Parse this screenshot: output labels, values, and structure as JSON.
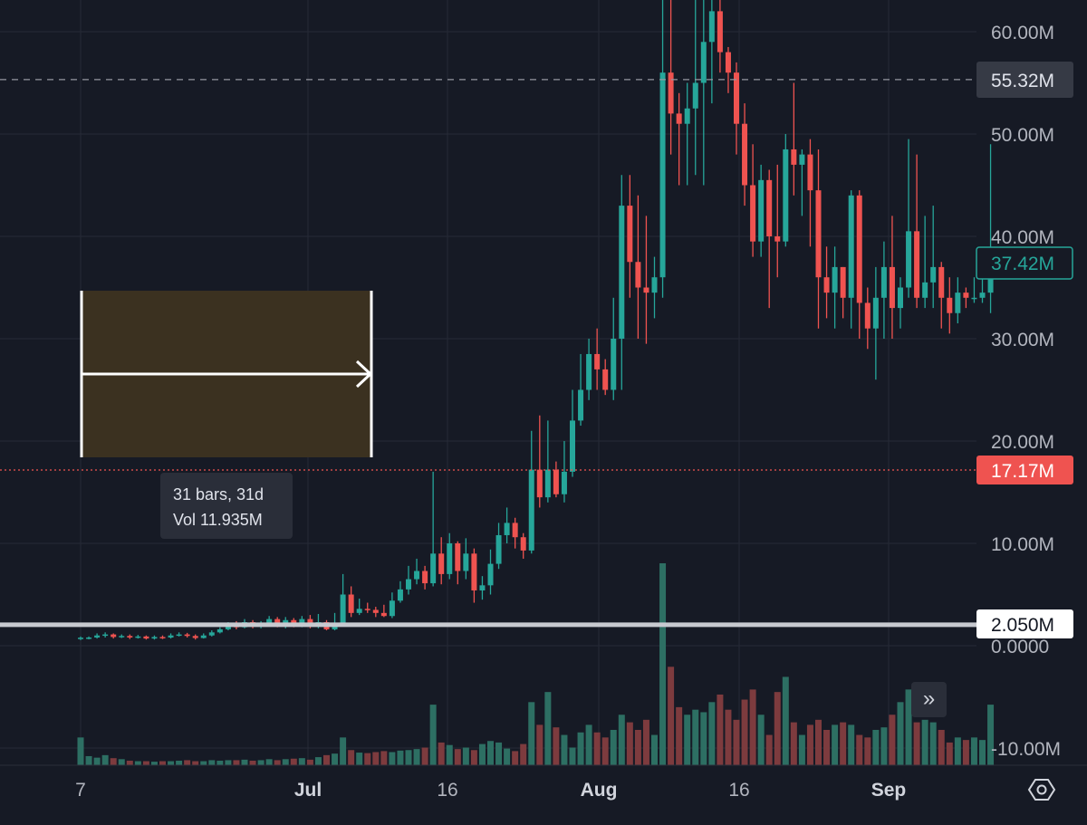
{
  "price_axis": {
    "ticks": [
      "60.00M",
      "50.00M",
      "40.00M",
      "30.00M",
      "20.00M",
      "10.00M",
      "0.0000",
      "-10.00M"
    ]
  },
  "time_axis": {
    "labels": [
      {
        "text": "7",
        "bold": false
      },
      {
        "text": "Jul",
        "bold": true
      },
      {
        "text": "16",
        "bold": false
      },
      {
        "text": "Aug",
        "bold": true
      },
      {
        "text": "16",
        "bold": false
      },
      {
        "text": "Sep",
        "bold": true
      }
    ]
  },
  "price_tags": {
    "high_line": "55.32M",
    "last_price": "37.42M",
    "low_line": "17.17M",
    "horizontal_level": "2.050M"
  },
  "measure": {
    "line1": "31 bars, 31d",
    "line2": "Vol 11.935M"
  },
  "buttons": {
    "scroll_to_realtime": "»"
  },
  "colors": {
    "background": "#161a25",
    "up": "#26a69a",
    "down": "#ef5350",
    "up_volume": "#2d6f63",
    "down_volume": "#7d3b3e",
    "grid": "#262a36",
    "measure_fill": "#3b3120"
  },
  "chart_data": {
    "type": "candlestick",
    "ylim": [
      -10000000,
      65000000
    ],
    "candles": [
      [
        0.65,
        0.78,
        0.55,
        0.9
      ],
      [
        0.78,
        0.8,
        0.62,
        0.9
      ],
      [
        0.8,
        1.0,
        0.7,
        1.2
      ],
      [
        1.0,
        1.1,
        0.8,
        1.3
      ],
      [
        1.1,
        0.85,
        0.7,
        1.2
      ],
      [
        0.85,
        0.95,
        0.75,
        1.1
      ],
      [
        0.95,
        0.8,
        0.65,
        1.1
      ],
      [
        0.8,
        0.9,
        0.7,
        1.05
      ],
      [
        0.9,
        0.7,
        0.6,
        1.0
      ],
      [
        0.7,
        0.85,
        0.6,
        1.0
      ],
      [
        0.85,
        0.8,
        0.65,
        1.0
      ],
      [
        0.8,
        1.0,
        0.7,
        1.2
      ],
      [
        1.0,
        1.1,
        0.9,
        1.3
      ],
      [
        1.1,
        0.95,
        0.8,
        1.25
      ],
      [
        0.95,
        0.75,
        0.6,
        1.1
      ],
      [
        0.75,
        1.0,
        0.7,
        1.2
      ],
      [
        1.0,
        1.3,
        0.9,
        1.5
      ],
      [
        1.3,
        1.6,
        1.2,
        1.8
      ],
      [
        1.6,
        2.1,
        1.5,
        2.3
      ],
      [
        2.1,
        1.8,
        1.6,
        2.4
      ],
      [
        1.8,
        2.3,
        1.7,
        2.6
      ],
      [
        2.3,
        1.9,
        1.7,
        2.5
      ],
      [
        1.9,
        2.2,
        1.7,
        2.4
      ],
      [
        2.2,
        2.6,
        2.0,
        2.9
      ],
      [
        2.6,
        1.9,
        1.8,
        2.8
      ],
      [
        1.9,
        2.5,
        1.7,
        2.8
      ],
      [
        2.5,
        2.0,
        1.8,
        2.7
      ],
      [
        2.0,
        2.6,
        1.8,
        2.9
      ],
      [
        2.6,
        1.9,
        1.7,
        3.0
      ],
      [
        1.9,
        2.3,
        1.7,
        3.1
      ],
      [
        2.3,
        1.6,
        1.5,
        2.5
      ],
      [
        1.6,
        2.2,
        1.5,
        3.2
      ],
      [
        2.2,
        5.0,
        2.1,
        7.0
      ],
      [
        5.0,
        3.2,
        2.8,
        5.8
      ],
      [
        3.2,
        3.6,
        3.0,
        4.6
      ],
      [
        3.6,
        3.5,
        3.2,
        4.2
      ],
      [
        3.5,
        3.2,
        2.8,
        3.8
      ],
      [
        3.2,
        2.9,
        2.8,
        4.0
      ],
      [
        2.9,
        4.4,
        2.7,
        5.2
      ],
      [
        4.4,
        5.5,
        4.2,
        6.3
      ],
      [
        5.5,
        6.5,
        5.0,
        7.8
      ],
      [
        6.5,
        7.3,
        6.0,
        8.5
      ],
      [
        7.3,
        6.1,
        5.5,
        7.8
      ],
      [
        6.1,
        9.0,
        5.8,
        17.0
      ],
      [
        9.0,
        7.0,
        6.0,
        10.6
      ],
      [
        7.0,
        10.0,
        6.5,
        11.0
      ],
      [
        10.0,
        7.3,
        6.0,
        10.2
      ],
      [
        7.3,
        9.0,
        6.5,
        10.5
      ],
      [
        9.0,
        5.4,
        4.2,
        9.5
      ],
      [
        5.4,
        5.9,
        4.5,
        6.8
      ],
      [
        5.9,
        8.0,
        5.0,
        9.4
      ],
      [
        8.0,
        10.8,
        7.5,
        12.0
      ],
      [
        10.8,
        12.0,
        10.0,
        13.5
      ],
      [
        12.0,
        10.6,
        9.5,
        12.5
      ],
      [
        10.6,
        9.3,
        8.5,
        11.0
      ],
      [
        9.3,
        17.2,
        9.0,
        21.0
      ],
      [
        17.2,
        14.5,
        13.5,
        22.5
      ],
      [
        14.5,
        17.2,
        14.0,
        22.0
      ],
      [
        17.2,
        14.8,
        14.5,
        18.0
      ],
      [
        14.8,
        17.0,
        14.0,
        20.0
      ],
      [
        17.0,
        22.0,
        16.5,
        25.0
      ],
      [
        22.0,
        25.0,
        21.5,
        28.5
      ],
      [
        25.0,
        28.5,
        24.0,
        30.0
      ],
      [
        28.5,
        27.0,
        25.0,
        31.0
      ],
      [
        27.0,
        25.0,
        24.5,
        28.0
      ],
      [
        25.0,
        30.0,
        24.0,
        34.0
      ],
      [
        30.0,
        43.0,
        25.0,
        46.0
      ],
      [
        43.0,
        37.5,
        34.0,
        46.0
      ],
      [
        37.5,
        35.0,
        30.0,
        44.0
      ],
      [
        35.0,
        34.5,
        29.5,
        42.0
      ],
      [
        34.5,
        36.0,
        32.0,
        38.0
      ],
      [
        36.0,
        56.0,
        34.0,
        65.0
      ],
      [
        56.0,
        52.0,
        48.0,
        64.0
      ],
      [
        52.0,
        51.0,
        45.0,
        54.0
      ],
      [
        51.0,
        52.5,
        45.0,
        55.0
      ],
      [
        52.5,
        55.0,
        46.0,
        65.0
      ],
      [
        55.0,
        59.0,
        45.0,
        65.0
      ],
      [
        59.0,
        62.0,
        53.0,
        65.0
      ],
      [
        62.0,
        58.0,
        56.0,
        65.0
      ],
      [
        58.0,
        56.0,
        54.0,
        58.5
      ],
      [
        56.0,
        51.0,
        48.0,
        57.0
      ],
      [
        51.0,
        45.0,
        43.0,
        53.0
      ],
      [
        45.0,
        39.5,
        38.0,
        49.0
      ],
      [
        39.5,
        45.5,
        38.0,
        47.0
      ],
      [
        45.5,
        40.0,
        33.0,
        46.5
      ],
      [
        40.0,
        39.5,
        36.0,
        47.0
      ],
      [
        39.5,
        48.5,
        39.0,
        50.0
      ],
      [
        48.5,
        47.0,
        44.0,
        55.0
      ],
      [
        47.0,
        48.0,
        42.0,
        48.5
      ],
      [
        48.0,
        44.5,
        39.0,
        49.5
      ],
      [
        44.5,
        36.0,
        31.0,
        48.5
      ],
      [
        36.0,
        34.5,
        32.0,
        39.0
      ],
      [
        34.5,
        37.0,
        31.0,
        39.0
      ],
      [
        37.0,
        34.0,
        32.0,
        37.0
      ],
      [
        34.0,
        44.0,
        31.0,
        44.5
      ],
      [
        44.0,
        33.5,
        30.0,
        44.5
      ],
      [
        33.5,
        31.0,
        29.0,
        35.0
      ],
      [
        31.0,
        34.0,
        26.0,
        37.0
      ],
      [
        34.0,
        37.0,
        30.0,
        39.5
      ],
      [
        37.0,
        33.0,
        30.0,
        42.0
      ],
      [
        33.0,
        35.0,
        31.0,
        36.0
      ],
      [
        35.0,
        40.5,
        34.0,
        49.5
      ],
      [
        40.5,
        34.0,
        33.0,
        48.0
      ],
      [
        34.0,
        35.5,
        33.0,
        42.0
      ],
      [
        35.5,
        37.0,
        33.0,
        43.0
      ],
      [
        37.0,
        34.0,
        31.0,
        37.5
      ],
      [
        34.0,
        32.5,
        30.5,
        36.0
      ],
      [
        32.5,
        34.5,
        31.5,
        36.0
      ],
      [
        34.5,
        34.0,
        33.0,
        35.0
      ],
      [
        34.0,
        34.0,
        33.5,
        36.0
      ],
      [
        34.0,
        34.5,
        33.5,
        37.0
      ],
      [
        34.5,
        37.42,
        32.5,
        49.0
      ]
    ],
    "volume": [
      5.5,
      1.8,
      1.5,
      2.0,
      1.4,
      1.2,
      0.9,
      0.8,
      0.8,
      0.7,
      0.8,
      0.8,
      0.9,
      1.0,
      0.8,
      0.8,
      1.0,
      0.9,
      1.0,
      1.0,
      1.1,
      0.9,
      1.0,
      1.2,
      1.0,
      1.2,
      1.3,
      1.4,
      1.1,
      1.6,
      2.0,
      2.3,
      5.5,
      3.0,
      2.5,
      2.4,
      2.6,
      2.8,
      2.6,
      2.9,
      3.0,
      3.2,
      3.5,
      12.0,
      4.5,
      4.0,
      3.2,
      3.5,
      3.0,
      4.2,
      4.8,
      4.5,
      3.3,
      2.8,
      4.2,
      12.5,
      8.0,
      14.5,
      7.5,
      6.0,
      3.5,
      6.5,
      8.0,
      6.5,
      5.5,
      7.0,
      10.0,
      8.5,
      7.0,
      9.0,
      6.0,
      40.0,
      19.5,
      11.5,
      10.0,
      11.0,
      10.5,
      12.5,
      14.0,
      11.0,
      9.0,
      13.0,
      15.0,
      10.0,
      6.0,
      14.5,
      17.5,
      8.5,
      6.0,
      8.0,
      9.0,
      7.0,
      8.0,
      8.5,
      8.0,
      6.0,
      5.5,
      7.0,
      7.5,
      10.0,
      12.5,
      15.0,
      8.5,
      9.0,
      8.5,
      7.0,
      4.5,
      5.5,
      5.0,
      5.5,
      5.0,
      12.0
    ],
    "volume_scale_max": 40.0,
    "horizontal_levels": [
      55.32,
      17.17,
      2.05
    ]
  }
}
